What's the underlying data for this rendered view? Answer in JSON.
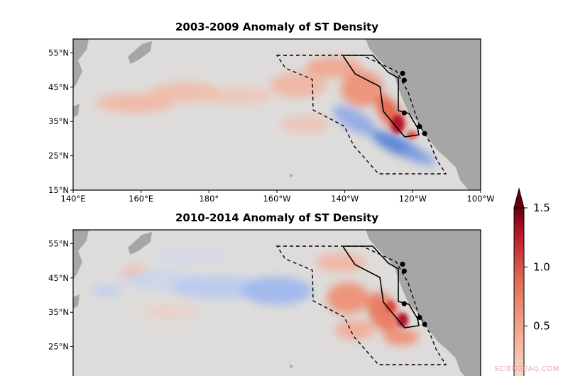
{
  "chart_data": [
    {
      "type": "heatmap",
      "title": "2003-2009 Anomaly of ST Density",
      "x_ticks": [
        "140°E",
        "160°E",
        "180°",
        "160°W",
        "140°W",
        "120°W",
        "100°W"
      ],
      "y_ticks": [
        "55°N",
        "45°N",
        "35°N",
        "25°N",
        "15°N"
      ],
      "lon_range": [
        140,
        260
      ],
      "lat_range": [
        15,
        59
      ],
      "stations": [
        [
          -123,
          49
        ],
        [
          -122.5,
          47
        ],
        [
          -122.5,
          37.5
        ],
        [
          -118,
          33.5
        ],
        [
          -116.5,
          31.5
        ]
      ]
    },
    {
      "type": "heatmap",
      "title": "2010-2014 Anomaly of ST Density",
      "x_ticks": [],
      "y_ticks": [
        "55°N",
        "45°N",
        "35°N",
        "25°N"
      ],
      "lon_range": [
        140,
        260
      ],
      "lat_range": [
        15,
        59
      ],
      "stations": [
        [
          -123,
          49
        ],
        [
          -122.5,
          47
        ],
        [
          -122.5,
          37.5
        ],
        [
          -118,
          33.5
        ],
        [
          -116.5,
          31.5
        ]
      ]
    }
  ],
  "colorbar": {
    "ticks": [
      {
        "value": 1.5,
        "label": "1.5"
      },
      {
        "value": 1.0,
        "label": "1.0"
      },
      {
        "value": 0.5,
        "label": "0.5"
      }
    ],
    "colors": [
      "#f3e0d9",
      "#f4a98f",
      "#e06b52",
      "#b7192c",
      "#67000d"
    ]
  },
  "colors": {
    "ocean": "#dedcdb",
    "land": "#a6a6a6",
    "positive": "#e8583f",
    "negative": "#4f7fd8"
  },
  "watermark": "SCIENGEAQ.COM"
}
